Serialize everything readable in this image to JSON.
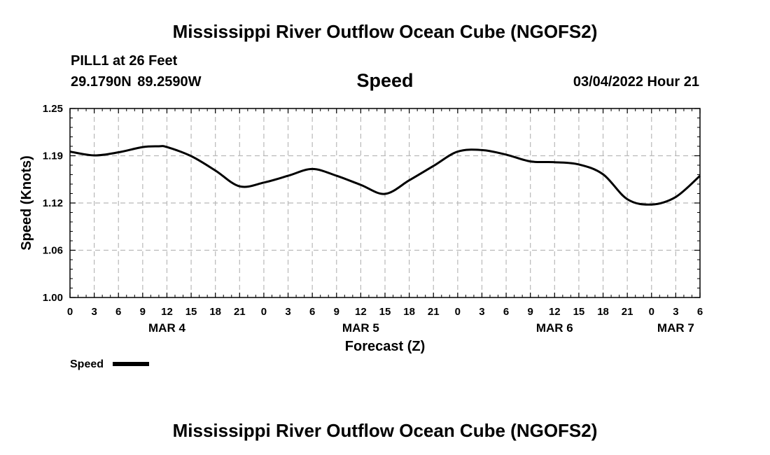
{
  "header": {
    "title": "Mississippi River Outflow Ocean Cube (NGOFS2)",
    "station": "PILL1 at 26 Feet",
    "coords": "29.1790N  89.2590W",
    "variable": "Speed",
    "timestamp": "03/04/2022 Hour 21"
  },
  "footer": {
    "title": "Mississippi River Outflow Ocean Cube (NGOFS2)"
  },
  "chart_data": {
    "type": "line",
    "title": "Speed",
    "xlabel": "Forecast (Z)",
    "ylabel": "Speed (Knots)",
    "ylim": [
      1.0,
      1.25
    ],
    "yticks": [
      "1.00",
      "1.06",
      "1.12",
      "1.19",
      "1.25"
    ],
    "xlim": [
      0,
      78
    ],
    "xticks": [
      "0",
      "3",
      "6",
      "9",
      "12",
      "15",
      "18",
      "21",
      "0",
      "3",
      "6",
      "9",
      "12",
      "15",
      "18",
      "21",
      "0",
      "3",
      "6",
      "9",
      "12",
      "15",
      "18",
      "21",
      "0",
      "3",
      "6"
    ],
    "date_labels": [
      {
        "hour": 12,
        "label": "MAR 4"
      },
      {
        "hour": 36,
        "label": "MAR 5"
      },
      {
        "hour": 60,
        "label": "MAR 6"
      },
      {
        "hour": 75,
        "label": "MAR 7"
      }
    ],
    "grid": true,
    "legend": "bottom-left",
    "series": [
      {
        "name": "Speed",
        "color": "#000000",
        "x": [
          0,
          3,
          6,
          9,
          11,
          12,
          15,
          18,
          21,
          24,
          27,
          30,
          33,
          36,
          39,
          42,
          45,
          48,
          51,
          54,
          57,
          60,
          63,
          66,
          69,
          72,
          75,
          78
        ],
        "values": [
          1.193,
          1.188,
          1.192,
          1.199,
          1.2,
          1.199,
          1.187,
          1.168,
          1.147,
          1.152,
          1.161,
          1.17,
          1.161,
          1.149,
          1.137,
          1.155,
          1.174,
          1.193,
          1.195,
          1.189,
          1.18,
          1.179,
          1.176,
          1.163,
          1.13,
          1.123,
          1.133,
          1.161
        ]
      }
    ]
  }
}
